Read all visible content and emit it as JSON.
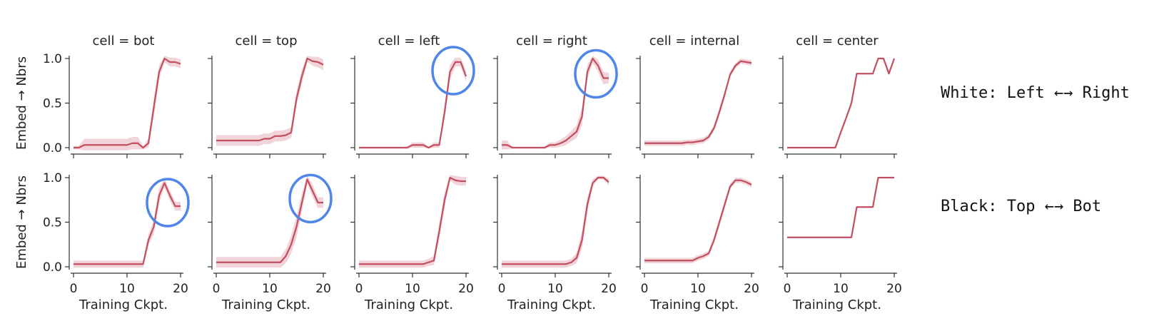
{
  "chart_data": {
    "type": "line",
    "grid": false,
    "xlim": [
      0,
      20
    ],
    "ylim": [
      0,
      1
    ],
    "xticks": [
      0,
      10,
      20
    ],
    "yticks": [
      0.0,
      0.5,
      1.0
    ],
    "x": [
      0,
      1,
      2,
      3,
      4,
      5,
      6,
      7,
      8,
      9,
      10,
      11,
      12,
      13,
      14,
      15,
      16,
      17,
      18,
      19,
      20
    ],
    "ylabel": "Embed → Nbrs",
    "xlabel": "Training Ckpt.",
    "line_color": "#c44e61",
    "band_color": "#e8b7bf",
    "highlight_color": "#4f86e8",
    "row_labels": [
      "White: Left ←→ Right",
      "Black: Top ←→ Bot"
    ],
    "column_titles": [
      "cell = bot",
      "cell = top",
      "cell = left",
      "cell = right",
      "cell = internal",
      "cell = center"
    ],
    "rows": [
      [
        {
          "y": [
            0.0,
            0.0,
            0.03,
            0.03,
            0.03,
            0.03,
            0.03,
            0.03,
            0.03,
            0.03,
            0.03,
            0.05,
            0.05,
            0.0,
            0.05,
            0.45,
            0.85,
            1.0,
            0.96,
            0.96,
            0.94
          ],
          "band": [
            0.02,
            0.02,
            0.07,
            0.07,
            0.07,
            0.07,
            0.07,
            0.07,
            0.07,
            0.07,
            0.07,
            0.07,
            0.07,
            0.02,
            0.05,
            0.1,
            0.08,
            0.04,
            0.05,
            0.05,
            0.05
          ],
          "highlight": null
        },
        {
          "y": [
            0.08,
            0.08,
            0.08,
            0.08,
            0.08,
            0.08,
            0.08,
            0.08,
            0.08,
            0.1,
            0.1,
            0.13,
            0.13,
            0.14,
            0.17,
            0.55,
            0.8,
            1.0,
            0.97,
            0.96,
            0.93
          ],
          "band": [
            0.06,
            0.06,
            0.06,
            0.06,
            0.06,
            0.06,
            0.06,
            0.06,
            0.06,
            0.06,
            0.06,
            0.06,
            0.06,
            0.06,
            0.06,
            0.08,
            0.08,
            0.04,
            0.05,
            0.06,
            0.06
          ],
          "highlight": null
        },
        {
          "y": [
            0.0,
            0.0,
            0.0,
            0.0,
            0.0,
            0.0,
            0.0,
            0.0,
            0.0,
            0.0,
            0.03,
            0.03,
            0.03,
            0.0,
            0.03,
            0.03,
            0.4,
            0.85,
            0.96,
            0.96,
            0.8
          ],
          "band": [
            0.01,
            0.01,
            0.01,
            0.01,
            0.01,
            0.01,
            0.01,
            0.01,
            0.01,
            0.01,
            0.03,
            0.03,
            0.03,
            0.01,
            0.03,
            0.03,
            0.08,
            0.08,
            0.05,
            0.05,
            0.06
          ],
          "highlight": 17.6
        },
        {
          "y": [
            0.03,
            0.03,
            0.0,
            0.0,
            0.0,
            0.0,
            0.0,
            0.0,
            0.0,
            0.03,
            0.03,
            0.05,
            0.08,
            0.13,
            0.18,
            0.35,
            0.85,
            1.0,
            0.92,
            0.78,
            0.78
          ],
          "band": [
            0.05,
            0.05,
            0.01,
            0.01,
            0.01,
            0.01,
            0.01,
            0.01,
            0.01,
            0.03,
            0.03,
            0.04,
            0.05,
            0.06,
            0.07,
            0.1,
            0.08,
            0.05,
            0.07,
            0.07,
            0.06
          ],
          "highlight": 17.6
        },
        {
          "y": [
            0.05,
            0.05,
            0.05,
            0.05,
            0.05,
            0.05,
            0.05,
            0.05,
            0.06,
            0.06,
            0.07,
            0.08,
            0.12,
            0.22,
            0.4,
            0.6,
            0.82,
            0.92,
            0.97,
            0.96,
            0.95
          ],
          "band": [
            0.03,
            0.03,
            0.03,
            0.03,
            0.03,
            0.03,
            0.03,
            0.03,
            0.03,
            0.03,
            0.03,
            0.03,
            0.03,
            0.03,
            0.04,
            0.04,
            0.03,
            0.03,
            0.03,
            0.03,
            0.03
          ],
          "highlight": null
        },
        {
          "y": [
            0.0,
            0.0,
            0.0,
            0.0,
            0.0,
            0.0,
            0.0,
            0.0,
            0.0,
            0.0,
            0.17,
            0.33,
            0.5,
            0.83,
            0.83,
            0.83,
            0.83,
            1.0,
            1.0,
            0.83,
            1.0
          ],
          "band": [
            0,
            0,
            0,
            0,
            0,
            0,
            0,
            0,
            0,
            0,
            0,
            0,
            0,
            0,
            0,
            0,
            0,
            0,
            0,
            0,
            0
          ],
          "highlight": null
        }
      ],
      [
        {
          "y": [
            0.03,
            0.03,
            0.03,
            0.03,
            0.03,
            0.03,
            0.03,
            0.03,
            0.03,
            0.03,
            0.03,
            0.03,
            0.03,
            0.03,
            0.3,
            0.45,
            0.8,
            0.94,
            0.8,
            0.68,
            0.68
          ],
          "band": [
            0.04,
            0.04,
            0.04,
            0.04,
            0.04,
            0.04,
            0.04,
            0.04,
            0.04,
            0.04,
            0.04,
            0.04,
            0.04,
            0.04,
            0.06,
            0.08,
            0.08,
            0.05,
            0.06,
            0.05,
            0.05
          ],
          "highlight": 17.6
        },
        {
          "y": [
            0.05,
            0.05,
            0.05,
            0.05,
            0.05,
            0.05,
            0.05,
            0.05,
            0.05,
            0.05,
            0.05,
            0.05,
            0.05,
            0.12,
            0.25,
            0.45,
            0.72,
            0.98,
            0.85,
            0.72,
            0.72
          ],
          "band": [
            0.06,
            0.06,
            0.06,
            0.06,
            0.06,
            0.06,
            0.06,
            0.06,
            0.06,
            0.06,
            0.06,
            0.06,
            0.06,
            0.08,
            0.1,
            0.12,
            0.1,
            0.05,
            0.07,
            0.06,
            0.06
          ],
          "highlight": 17.6
        },
        {
          "y": [
            0.03,
            0.03,
            0.03,
            0.03,
            0.03,
            0.03,
            0.03,
            0.03,
            0.03,
            0.03,
            0.03,
            0.03,
            0.03,
            0.05,
            0.07,
            0.4,
            0.75,
            1.0,
            0.97,
            0.96,
            0.96
          ],
          "band": [
            0.04,
            0.04,
            0.04,
            0.04,
            0.04,
            0.04,
            0.04,
            0.04,
            0.04,
            0.04,
            0.04,
            0.04,
            0.04,
            0.04,
            0.05,
            0.08,
            0.08,
            0.03,
            0.05,
            0.05,
            0.05
          ],
          "highlight": null
        },
        {
          "y": [
            0.03,
            0.03,
            0.03,
            0.03,
            0.03,
            0.03,
            0.03,
            0.03,
            0.03,
            0.03,
            0.03,
            0.03,
            0.03,
            0.05,
            0.1,
            0.3,
            0.7,
            0.94,
            1.0,
            1.0,
            0.95
          ],
          "band": [
            0.04,
            0.04,
            0.04,
            0.04,
            0.04,
            0.04,
            0.04,
            0.04,
            0.04,
            0.04,
            0.04,
            0.04,
            0.04,
            0.04,
            0.06,
            0.1,
            0.08,
            0.04,
            0.02,
            0.02,
            0.04
          ],
          "highlight": null
        },
        {
          "y": [
            0.07,
            0.07,
            0.07,
            0.07,
            0.07,
            0.07,
            0.07,
            0.07,
            0.07,
            0.07,
            0.1,
            0.12,
            0.15,
            0.3,
            0.5,
            0.7,
            0.9,
            0.97,
            0.97,
            0.95,
            0.92
          ],
          "band": [
            0.03,
            0.03,
            0.03,
            0.03,
            0.03,
            0.03,
            0.03,
            0.03,
            0.03,
            0.03,
            0.03,
            0.03,
            0.03,
            0.04,
            0.04,
            0.04,
            0.03,
            0.03,
            0.03,
            0.03,
            0.03
          ],
          "highlight": null
        },
        {
          "y": [
            0.33,
            0.33,
            0.33,
            0.33,
            0.33,
            0.33,
            0.33,
            0.33,
            0.33,
            0.33,
            0.33,
            0.33,
            0.33,
            0.67,
            0.67,
            0.67,
            0.67,
            1.0,
            1.0,
            1.0,
            1.0
          ],
          "band": [
            0,
            0,
            0,
            0,
            0,
            0,
            0,
            0,
            0,
            0,
            0,
            0,
            0,
            0,
            0,
            0,
            0,
            0,
            0,
            0,
            0
          ],
          "highlight": null
        }
      ]
    ]
  }
}
